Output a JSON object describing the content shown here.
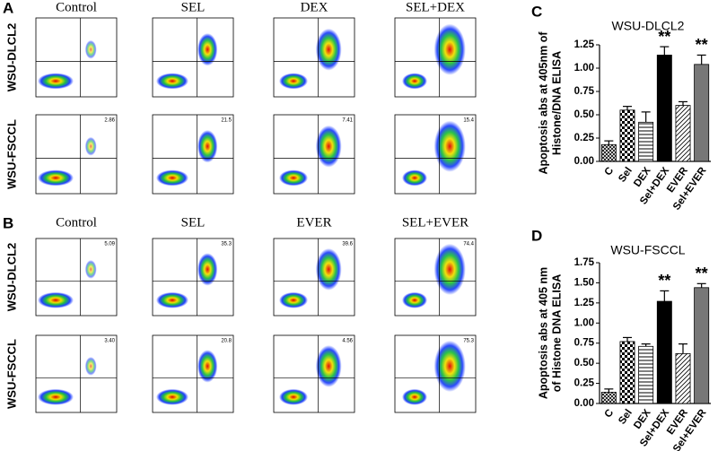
{
  "panels": {
    "A": {
      "label": "A",
      "columns": [
        "Control",
        "SEL",
        "DEX",
        "SEL+DEX"
      ],
      "rows": [
        {
          "label": "WSU-DLCL2"
        },
        {
          "label": "WSU-FSCCL",
          "top_right": [
            "2.86",
            "21.5",
            "7.41",
            "15.4"
          ]
        }
      ]
    },
    "B": {
      "label": "B",
      "columns": [
        "Control",
        "SEL",
        "EVER",
        "SEL+EVER"
      ],
      "rows": [
        {
          "label": "WSU-DLCL2",
          "top_right": [
            "5.09",
            "35.3",
            "39.6",
            "74.4"
          ]
        },
        {
          "label": "WSU-FSCCL",
          "top_right": [
            "3.40",
            "20.8",
            "4.56",
            "75.3"
          ]
        }
      ]
    }
  },
  "chart_data": [
    {
      "type": "bar",
      "panel": "C",
      "title": "WSU-DLCL2",
      "ylabel": [
        "Apoptosis abs at 405nm of",
        "Histone/DNA ELISA"
      ],
      "categories": [
        "C",
        "Sel",
        "DEX",
        "Sel+DEX",
        "EVER",
        "Sel+EVER"
      ],
      "values": [
        0.18,
        0.55,
        0.42,
        1.14,
        0.6,
        1.04
      ],
      "errors": [
        0.04,
        0.04,
        0.11,
        0.09,
        0.04,
        0.1
      ],
      "fills": [
        "crosshatch",
        "checker",
        "hlines",
        "#000000",
        "diagonal",
        "#777777"
      ],
      "ylim": [
        0,
        1.25
      ],
      "yticks": [
        {
          "value": 0,
          "label": "0.00"
        },
        {
          "value": 0.25,
          "label": "0.25"
        },
        {
          "value": 0.5,
          "label": "0.50"
        },
        {
          "value": 0.75,
          "label": "0.75"
        },
        {
          "value": 1,
          "label": "1.00"
        },
        {
          "value": 1.25,
          "label": "1.25"
        }
      ],
      "annotations": [
        {
          "text": "**",
          "at": "Sel+DEX"
        },
        {
          "text": "**",
          "at": "Sel+EVER"
        }
      ]
    },
    {
      "type": "bar",
      "panel": "D",
      "title": "WSU-FSCCL",
      "ylabel": [
        "Apoptosis abs at 405 nm",
        "of Histone DNA ELISA"
      ],
      "categories": [
        "C",
        "Sel",
        "DEX",
        "Sel+DEX",
        "EVER",
        "Sel+EVER"
      ],
      "values": [
        0.14,
        0.77,
        0.71,
        1.27,
        0.62,
        1.44
      ],
      "errors": [
        0.04,
        0.05,
        0.03,
        0.13,
        0.12,
        0.05
      ],
      "fills": [
        "crosshatch",
        "checker",
        "hlines",
        "#000000",
        "diagonal",
        "#777777"
      ],
      "ylim": [
        0,
        1.75
      ],
      "yticks": [
        {
          "value": 0,
          "label": "0.00"
        },
        {
          "value": 0.25,
          "label": "0.25"
        },
        {
          "value": 0.5,
          "label": "0.50"
        },
        {
          "value": 0.75,
          "label": "0.75"
        },
        {
          "value": 1,
          "label": "1.00"
        },
        {
          "value": 1.25,
          "label": "1.25"
        },
        {
          "value": 1.5,
          "label": "1.50"
        },
        {
          "value": 1.75,
          "label": "1.75"
        }
      ],
      "annotations": [
        {
          "text": "**",
          "at": "Sel+DEX"
        },
        {
          "text": "**",
          "at": "Sel+EVER"
        }
      ]
    }
  ]
}
